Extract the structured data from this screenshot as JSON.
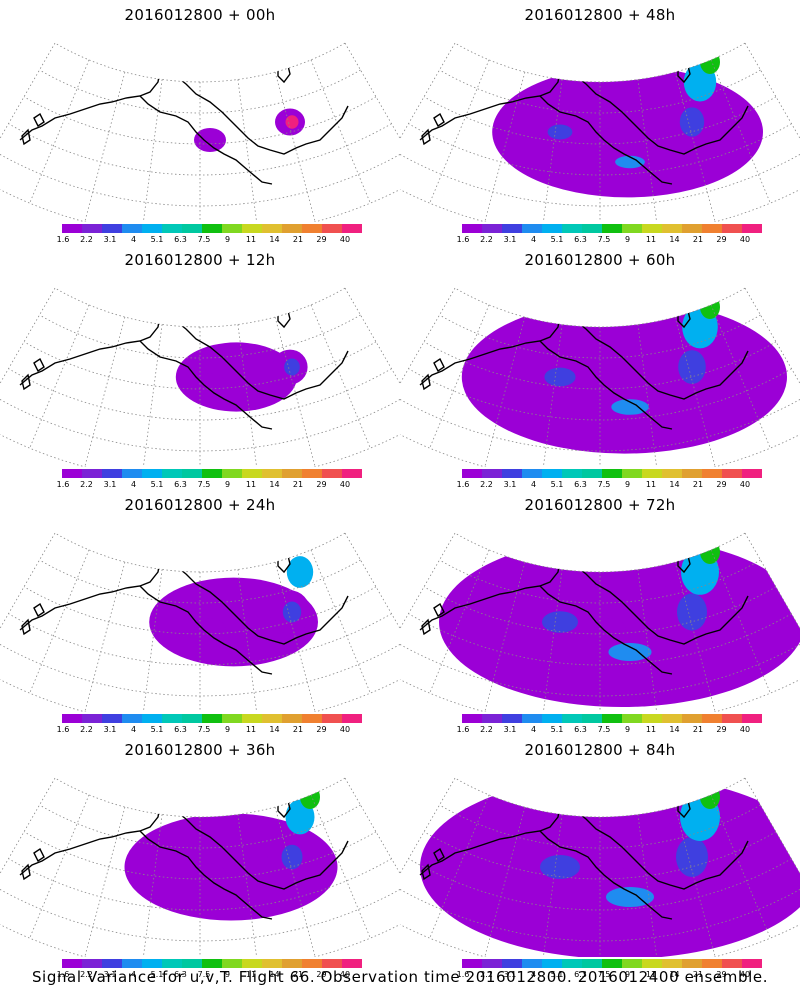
{
  "panels": [
    {
      "title": "2016012800 + 00h",
      "col": 0,
      "row": 0,
      "level": 0.05
    },
    {
      "title": "2016012800 + 48h",
      "col": 1,
      "row": 0,
      "level": 0.62
    },
    {
      "title": "2016012800 + 12h",
      "col": 0,
      "row": 1,
      "level": 0.18
    },
    {
      "title": "2016012800 + 60h",
      "col": 1,
      "row": 1,
      "level": 0.78
    },
    {
      "title": "2016012800 + 24h",
      "col": 0,
      "row": 2,
      "level": 0.32
    },
    {
      "title": "2016012800 + 72h",
      "col": 1,
      "row": 2,
      "level": 0.9
    },
    {
      "title": "2016012800 + 36h",
      "col": 0,
      "row": 3,
      "level": 0.45
    },
    {
      "title": "2016012800 + 84h",
      "col": 1,
      "row": 3,
      "level": 1.0
    }
  ],
  "colorbar": {
    "colors": [
      "#9b00d6",
      "#7b22d6",
      "#3f3fe0",
      "#1f8cf0",
      "#00b0f0",
      "#00c8b8",
      "#00c8a0",
      "#10c010",
      "#80d820",
      "#c8d820",
      "#e0c030",
      "#e0a030",
      "#f08030",
      "#f05050",
      "#f0207f"
    ],
    "labels": [
      "1.6",
      "2.2",
      "3.1",
      "4",
      "5.1",
      "6.3",
      "7.5",
      "9",
      "11",
      "14",
      "21",
      "29",
      "40"
    ]
  },
  "footer": "Signal Variance for u,v,T. Flight 66. Observation time 2016012800. 2016012400 ensemble."
}
